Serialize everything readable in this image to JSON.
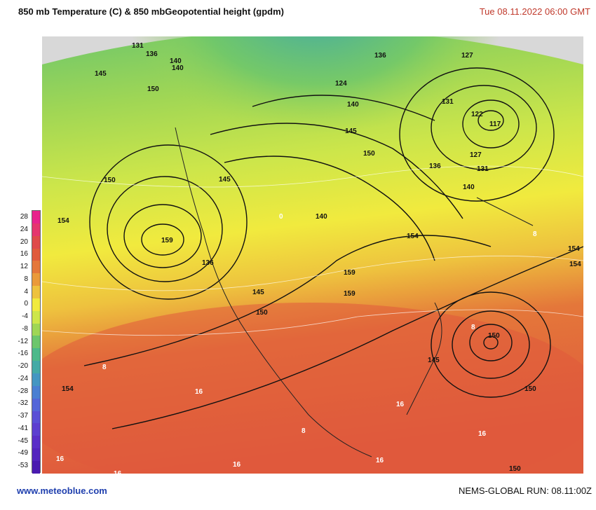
{
  "header": {
    "title": "850 mb Temperature (C)  & 850 mbGeopotential height (gpdm)",
    "datetime": "Tue 08.11.2022  06:00 GMT"
  },
  "footer": {
    "site": "www.meteoblue.com",
    "run": "NEMS-GLOBAL  RUN: 08.11:00Z"
  },
  "legend": {
    "labels": [
      "28",
      "24",
      "20",
      "16",
      "12",
      "8",
      "4",
      "0",
      "-4",
      "-8",
      "-12",
      "-16",
      "-20",
      "-24",
      "-28",
      "-32",
      "-37",
      "-41",
      "-45",
      "-49",
      "-53"
    ],
    "colors": [
      "#e8238c",
      "#e5356e",
      "#df4a4a",
      "#e05a3c",
      "#e4773a",
      "#ea9a3a",
      "#eec23e",
      "#f1ea3e",
      "#cde64a",
      "#9fd655",
      "#6cc66c",
      "#4cb98a",
      "#44aaa6",
      "#4496c2",
      "#4a7fd2",
      "#5466d8",
      "#5a4fd6",
      "#5c3ed0",
      "#5a2ec8",
      "#5424be",
      "#4a1ab0"
    ]
  },
  "map": {
    "height_labels": [
      "131",
      "136",
      "140",
      "145",
      "140",
      "150",
      "136",
      "127",
      "140",
      "124",
      "131",
      "122",
      "117",
      "145",
      "150",
      "127",
      "131",
      "136",
      "140",
      "145",
      "150",
      "154",
      "159",
      "136",
      "140",
      "154",
      "159",
      "145",
      "150",
      "159",
      "8",
      "150",
      "145",
      "154",
      "150",
      "154",
      "154",
      "16",
      "16",
      "8",
      "16",
      "16",
      "16",
      "16",
      "16",
      "150",
      "8",
      "16",
      "0",
      "8"
    ]
  }
}
